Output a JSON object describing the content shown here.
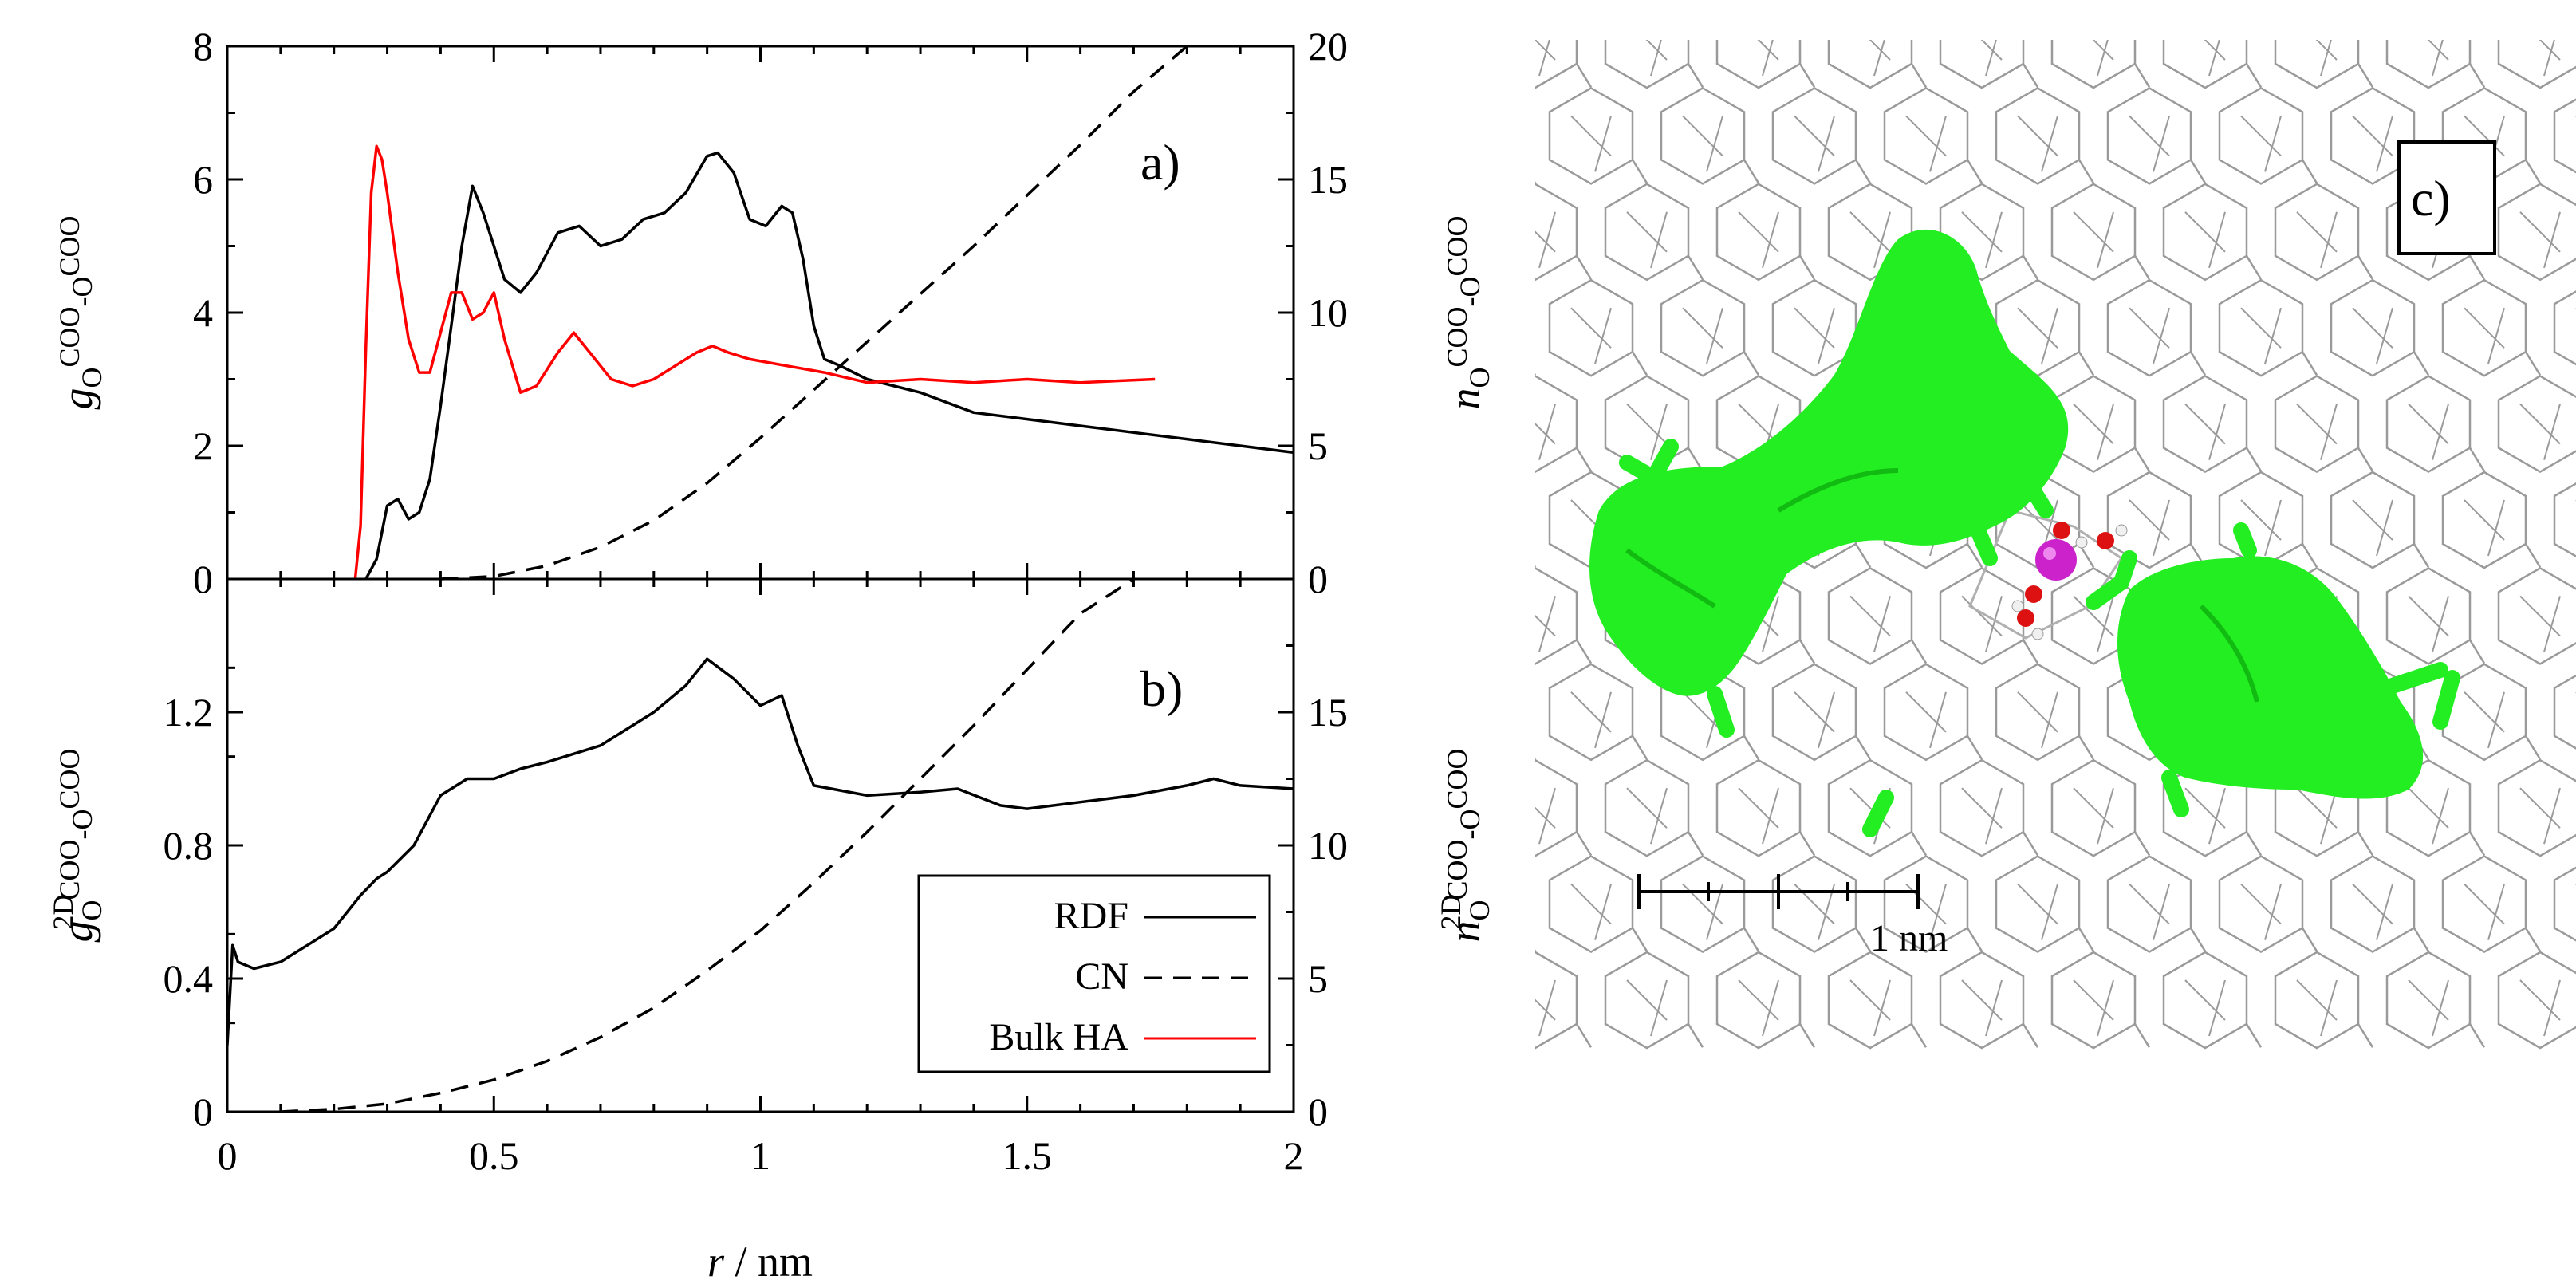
{
  "chart_data": [
    {
      "panel_label": "a)",
      "type": "line",
      "xlim": [
        0,
        2
      ],
      "ylim_left": [
        0,
        8
      ],
      "ylim_right": [
        0,
        20
      ],
      "yticks_left": [
        "0",
        "2",
        "4",
        "6",
        "8"
      ],
      "yticks_right": [
        "0",
        "5",
        "10",
        "15",
        "20"
      ],
      "ylabel_left": {
        "main": "g",
        "sub": "O",
        "sup1": "COO",
        "mid": "-O",
        "sup2": "COO"
      },
      "ylabel_right": {
        "main": "n",
        "sub": "O",
        "sup1": "COO",
        "mid": "-O",
        "sup2": "COO"
      },
      "series": [
        {
          "name": "RDF",
          "axis": "left",
          "color": "#000000",
          "dash": "solid",
          "x": [
            0.26,
            0.28,
            0.3,
            0.32,
            0.34,
            0.36,
            0.38,
            0.4,
            0.42,
            0.44,
            0.46,
            0.48,
            0.5,
            0.52,
            0.55,
            0.58,
            0.62,
            0.66,
            0.7,
            0.74,
            0.78,
            0.82,
            0.86,
            0.9,
            0.92,
            0.95,
            0.98,
            1.01,
            1.04,
            1.06,
            1.08,
            1.1,
            1.12,
            1.15,
            1.2,
            1.3,
            1.4,
            1.5,
            1.6,
            1.7,
            1.8,
            1.9,
            2.0
          ],
          "y": [
            0.0,
            0.3,
            1.1,
            1.2,
            0.9,
            1.0,
            1.5,
            2.6,
            3.8,
            5.0,
            5.9,
            5.5,
            5.0,
            4.5,
            4.3,
            4.6,
            5.2,
            5.3,
            5.0,
            5.1,
            5.4,
            5.5,
            5.8,
            6.35,
            6.4,
            6.1,
            5.4,
            5.3,
            5.6,
            5.5,
            4.8,
            3.8,
            3.3,
            3.2,
            3.0,
            2.8,
            2.5,
            2.4,
            2.3,
            2.2,
            2.1,
            2.0,
            1.9
          ]
        },
        {
          "name": "Bulk HA",
          "axis": "left",
          "color": "#ff0000",
          "dash": "solid",
          "x": [
            0.24,
            0.25,
            0.26,
            0.27,
            0.28,
            0.29,
            0.3,
            0.32,
            0.34,
            0.36,
            0.38,
            0.4,
            0.42,
            0.44,
            0.46,
            0.48,
            0.5,
            0.52,
            0.55,
            0.58,
            0.62,
            0.65,
            0.68,
            0.72,
            0.76,
            0.8,
            0.84,
            0.88,
            0.91,
            0.94,
            0.98,
            1.05,
            1.12,
            1.2,
            1.3,
            1.4,
            1.5,
            1.6,
            1.74
          ],
          "y": [
            0.0,
            0.8,
            3.5,
            5.8,
            6.5,
            6.3,
            5.8,
            4.6,
            3.6,
            3.1,
            3.1,
            3.7,
            4.3,
            4.3,
            3.9,
            4.0,
            4.3,
            3.6,
            2.8,
            2.9,
            3.4,
            3.7,
            3.4,
            3.0,
            2.9,
            3.0,
            3.2,
            3.4,
            3.5,
            3.4,
            3.3,
            3.2,
            3.1,
            2.95,
            3.0,
            2.95,
            3.0,
            2.95,
            3.0
          ]
        },
        {
          "name": "CN",
          "axis": "right",
          "color": "#000000",
          "dash": "dashed",
          "x": [
            0.4,
            0.5,
            0.6,
            0.7,
            0.8,
            0.9,
            1.0,
            1.1,
            1.2,
            1.3,
            1.4,
            1.5,
            1.6,
            1.7,
            1.8
          ],
          "y": [
            0.0,
            0.1,
            0.5,
            1.2,
            2.2,
            3.6,
            5.3,
            7.1,
            8.9,
            10.7,
            12.5,
            14.4,
            16.3,
            18.3,
            20.0
          ]
        }
      ]
    },
    {
      "panel_label": "b)",
      "type": "line",
      "xlim": [
        0,
        2
      ],
      "xlabel": {
        "var": "r",
        "unit": " / nm"
      },
      "xticks": [
        "0",
        "0.5",
        "1",
        "1.5",
        "2"
      ],
      "ylim_left": [
        0,
        1.6
      ],
      "ylim_right": [
        0,
        20
      ],
      "yticks_left": [
        "0",
        "0.4",
        "0.8",
        "1.2"
      ],
      "yticks_right": [
        "0",
        "5",
        "10",
        "15"
      ],
      "ylabel_left": {
        "pre": "2D",
        "main": "g",
        "sub": "O",
        "sup1": "COO",
        "mid": "-O",
        "sup2": "COO"
      },
      "ylabel_right": {
        "pre": "2D",
        "main": "n",
        "sub": "O",
        "sup1": "COO",
        "mid": "-O",
        "sup2": "COO"
      },
      "legend": {
        "placement": "bottom-right",
        "entries": [
          "RDF",
          "CN",
          "Bulk HA"
        ]
      },
      "series": [
        {
          "name": "RDF",
          "axis": "left",
          "color": "#000000",
          "dash": "solid",
          "x": [
            0.0,
            0.01,
            0.02,
            0.05,
            0.1,
            0.15,
            0.2,
            0.25,
            0.28,
            0.3,
            0.35,
            0.4,
            0.45,
            0.5,
            0.55,
            0.6,
            0.7,
            0.8,
            0.86,
            0.9,
            0.95,
            1.0,
            1.04,
            1.07,
            1.1,
            1.2,
            1.3,
            1.37,
            1.45,
            1.5,
            1.6,
            1.7,
            1.8,
            1.85,
            1.9,
            2.0
          ],
          "y": [
            0.2,
            0.5,
            0.45,
            0.43,
            0.45,
            0.5,
            0.55,
            0.65,
            0.7,
            0.72,
            0.8,
            0.95,
            1.0,
            1.0,
            1.03,
            1.05,
            1.1,
            1.2,
            1.28,
            1.36,
            1.3,
            1.22,
            1.25,
            1.1,
            0.98,
            0.95,
            0.96,
            0.97,
            0.92,
            0.91,
            0.93,
            0.95,
            0.98,
            1.0,
            0.98,
            0.97
          ]
        },
        {
          "name": "CN",
          "axis": "right",
          "color": "#000000",
          "dash": "dashed",
          "x": [
            0.1,
            0.2,
            0.3,
            0.4,
            0.5,
            0.6,
            0.7,
            0.8,
            0.9,
            1.0,
            1.1,
            1.2,
            1.3,
            1.4,
            1.5,
            1.6,
            1.7
          ],
          "y": [
            0.0,
            0.1,
            0.3,
            0.7,
            1.2,
            1.9,
            2.8,
            3.9,
            5.3,
            6.8,
            8.6,
            10.5,
            12.5,
            14.5,
            16.6,
            18.7,
            20.0
          ]
        }
      ]
    }
  ],
  "panel_c": {
    "label": "c)",
    "scale_bar_label": "1 nm",
    "colors": {
      "framework": "#9a9a9a",
      "surface": "#22ee22",
      "surface_dark": "#11aa11",
      "cation": "#cc22cc",
      "oxygen": "#dd1111",
      "hydrogen": "#f0f0f0"
    }
  }
}
